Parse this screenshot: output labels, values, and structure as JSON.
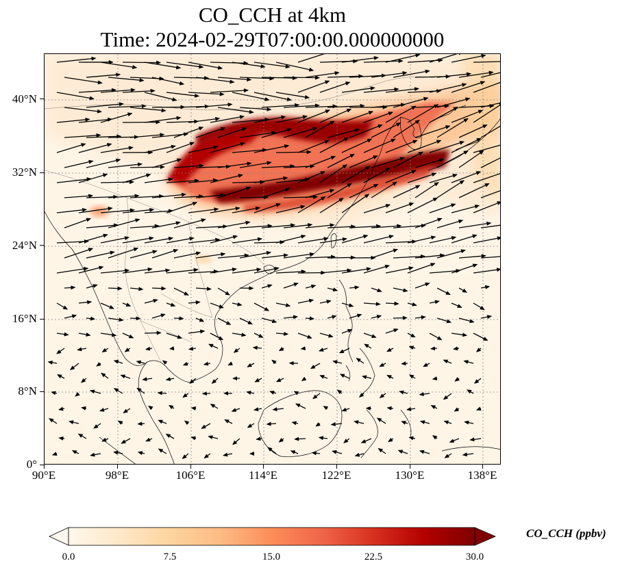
{
  "title": {
    "line1": "CO_CCH at 4km",
    "line2": "Time: 2024-02-29T07:00:00.000000000"
  },
  "map": {
    "lon_range": [
      90,
      140
    ],
    "lat_range": [
      0,
      45
    ],
    "lat_ticks": [
      "40°N",
      "32°N",
      "24°N",
      "16°N",
      "8°N",
      "0°"
    ],
    "lon_ticks": [
      "90°E",
      "98°E",
      "106°E",
      "114°E",
      "122°E",
      "130°E",
      "138°E"
    ],
    "gridlines": "dotted",
    "projection": "PlateCarree"
  },
  "colorbar": {
    "label": "CO_CCH (ppbv)",
    "ticks": [
      "0.0",
      "7.5",
      "15.0",
      "22.5",
      "30.0"
    ],
    "vmin": 0.0,
    "vmax": 30.0,
    "colormap": "OrRd",
    "extend": "both",
    "colors": [
      "#fff7ec",
      "#fee8c8",
      "#fdd49e",
      "#fdbb84",
      "#fc8d59",
      "#ef6548",
      "#d7301f",
      "#b30000",
      "#7f0000"
    ]
  },
  "colors": {
    "background": "#fff5e7",
    "plume_core": "#7f0000",
    "plume_edge": "#d7301f",
    "vector": "#000000",
    "coastline": "#000000",
    "grid": "#808080"
  }
}
